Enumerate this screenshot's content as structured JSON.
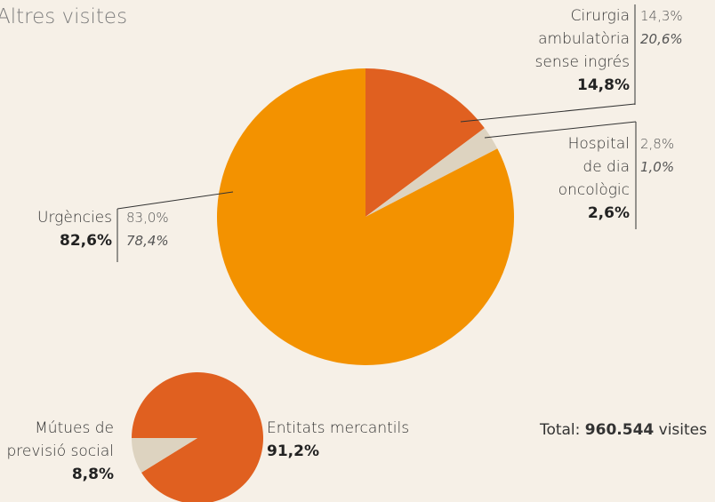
{
  "title": "Altres visites",
  "chart_data": [
    {
      "type": "pie",
      "categories": [
        "Cirurgia\nambulatòria\nsense ingrés",
        "Hospital\nde dia\noncològic",
        "Urgències"
      ],
      "values": [
        14.8,
        2.6,
        82.6
      ],
      "value_labels": [
        "14,8%",
        "2,6%",
        "82,6%"
      ],
      "colors": [
        "#e06020",
        "#ddd3c0",
        "#f39200"
      ],
      "comparisons": [
        [
          "14,3%",
          "20,6%"
        ],
        [
          "2,8%",
          "1,0%"
        ],
        [
          "83,0%",
          "78,4%"
        ]
      ]
    },
    {
      "type": "pie",
      "categories": [
        "Entitats mercantils",
        "Mútues de\nprevisió social"
      ],
      "values": [
        91.2,
        8.8
      ],
      "value_labels": [
        "91,2%",
        "8,8%"
      ],
      "colors": [
        "#e06020",
        "#ddd3c0"
      ]
    }
  ],
  "total": {
    "prefix": "Total:",
    "amount": "960.544",
    "suffix": "visites"
  }
}
